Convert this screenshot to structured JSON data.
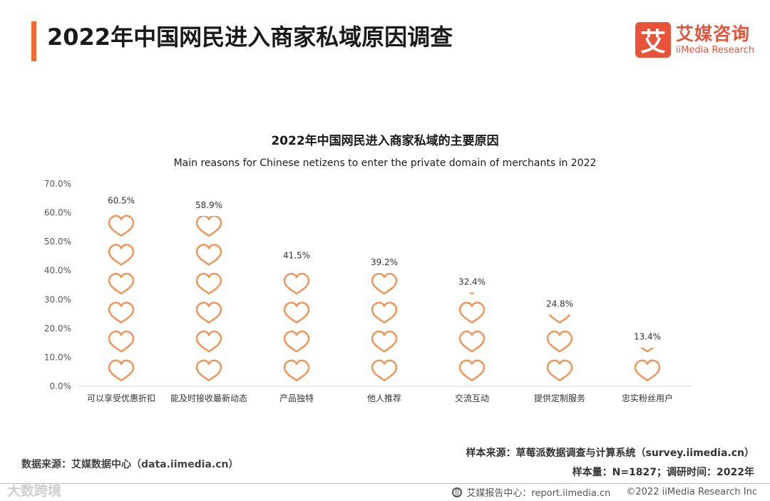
{
  "header": {
    "title": "2022年中国网民进入商家私域原因调查",
    "accent_color": "#f06a35"
  },
  "brand": {
    "mark": "艾",
    "name_cn": "艾媒咨询",
    "name_en": "iiMedia Research",
    "color": "#e8533a"
  },
  "chart_data": {
    "type": "bar",
    "title": "2022年中国网民进入商家私域的主要原因",
    "subtitle": "Main reasons for Chinese netizens to enter the private domain of merchants in 2022",
    "categories": [
      "可以享受优惠折扣",
      "能及时接收最新动态",
      "产品独特",
      "他人推荐",
      "交流互动",
      "提供定制服务",
      "忠实粉丝用户"
    ],
    "values": [
      60.5,
      58.9,
      41.5,
      39.2,
      32.4,
      24.8,
      13.4
    ],
    "value_labels": [
      "60.5%",
      "58.9%",
      "41.5%",
      "39.2%",
      "32.4%",
      "24.8%",
      "13.4%"
    ],
    "ylim": [
      0,
      70
    ],
    "yticks": [
      "0.0%",
      "10.0%",
      "20.0%",
      "30.0%",
      "40.0%",
      "50.0%",
      "60.0%",
      "70.0%"
    ],
    "grid": false,
    "bar_style": "stacked heart icons",
    "bar_color": "#f0955a"
  },
  "footer": {
    "data_source": "数据来源：艾媒数据中心（data.iimedia.cn）",
    "sample_source": "样本来源：草莓派数据调查与计算系统（survey.iimedia.cn）",
    "sample_info": "样本量：N=1827；调研时间：2022年",
    "report_center": "艾媒报告中心：report.iimedia.cn",
    "copyright": "©2022  iiMedia Research  Inc",
    "watermark": "大数跨境"
  }
}
